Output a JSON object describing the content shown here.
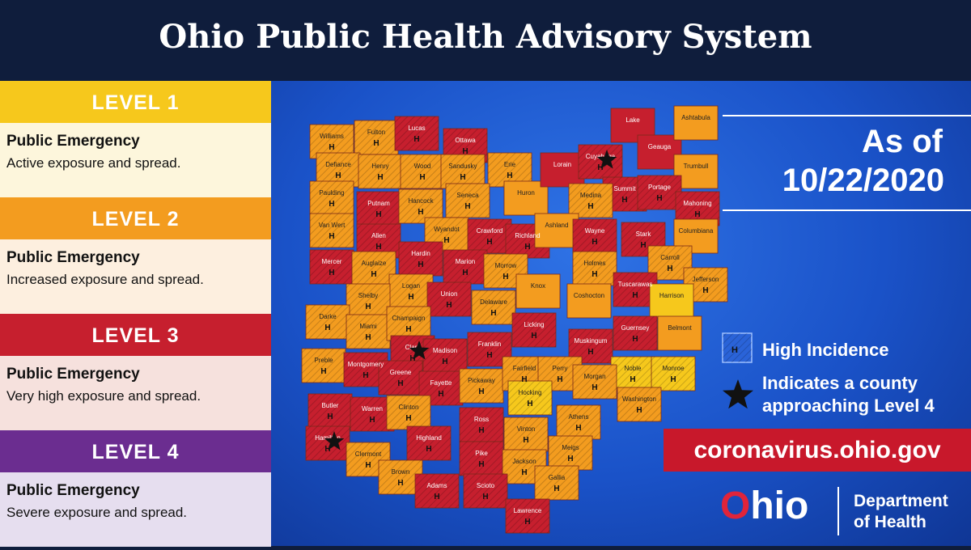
{
  "header": {
    "title": "Ohio Public Health Advisory System"
  },
  "levels": [
    {
      "label": "LEVEL 1",
      "color": "#f6c81c",
      "status": "Public Emergency",
      "description": "Active exposure and spread."
    },
    {
      "label": "LEVEL 2",
      "color": "#f39c1f",
      "status": "Public Emergency",
      "description": "Increased exposure and spread."
    },
    {
      "label": "LEVEL 3",
      "color": "#c61f2e",
      "status": "Public Emergency",
      "description": "Very high exposure and spread."
    },
    {
      "label": "LEVEL 4",
      "color": "#6b2d90",
      "status": "Public Emergency",
      "description": "Severe exposure and spread."
    }
  ],
  "date": {
    "prefix": "As of",
    "value": "10/22/2020"
  },
  "legend": {
    "high_incidence_marker": "H",
    "high_incidence": "High Incidence",
    "approaching": "Indicates a county approaching Level 4"
  },
  "website": "coronavirus.ohio.gov",
  "logo": {
    "name": "Ohio",
    "department": "Department of Health"
  },
  "counties": [
    {
      "name": "Williams",
      "level": 2,
      "high": true
    },
    {
      "name": "Fulton",
      "level": 2,
      "high": true
    },
    {
      "name": "Lucas",
      "level": 3,
      "high": true
    },
    {
      "name": "Ottawa",
      "level": 3,
      "high": true
    },
    {
      "name": "Defiance",
      "level": 2,
      "high": true
    },
    {
      "name": "Henry",
      "level": 2,
      "high": true
    },
    {
      "name": "Wood",
      "level": 2,
      "high": true
    },
    {
      "name": "Sandusky",
      "level": 2,
      "high": true
    },
    {
      "name": "Erie",
      "level": 2,
      "high": true
    },
    {
      "name": "Huron",
      "level": 2,
      "high": false
    },
    {
      "name": "Lorain",
      "level": 3,
      "high": false
    },
    {
      "name": "Cuyahoga",
      "level": 3,
      "high": true,
      "star": true
    },
    {
      "name": "Lake",
      "level": 3,
      "high": false
    },
    {
      "name": "Geauga",
      "level": 3,
      "high": false
    },
    {
      "name": "Ashtabula",
      "level": 2,
      "high": false
    },
    {
      "name": "Trumbull",
      "level": 2,
      "high": false
    },
    {
      "name": "Summit",
      "level": 3,
      "high": true
    },
    {
      "name": "Portage",
      "level": 3,
      "high": true
    },
    {
      "name": "Mahoning",
      "level": 3,
      "high": true
    },
    {
      "name": "Medina",
      "level": 2,
      "high": true
    },
    {
      "name": "Paulding",
      "level": 2,
      "high": true
    },
    {
      "name": "Putnam",
      "level": 3,
      "high": true
    },
    {
      "name": "Hancock",
      "level": 2,
      "high": true
    },
    {
      "name": "Seneca",
      "level": 2,
      "high": true
    },
    {
      "name": "Van Wert",
      "level": 2,
      "high": true
    },
    {
      "name": "Allen",
      "level": 3,
      "high": true
    },
    {
      "name": "Wyandot",
      "level": 2,
      "high": true
    },
    {
      "name": "Crawford",
      "level": 3,
      "high": true
    },
    {
      "name": "Richland",
      "level": 3,
      "high": true
    },
    {
      "name": "Ashland",
      "level": 2,
      "high": false
    },
    {
      "name": "Wayne",
      "level": 3,
      "high": true
    },
    {
      "name": "Stark",
      "level": 3,
      "high": true
    },
    {
      "name": "Columbiana",
      "level": 2,
      "high": false
    },
    {
      "name": "Mercer",
      "level": 3,
      "high": true
    },
    {
      "name": "Auglaize",
      "level": 2,
      "high": true
    },
    {
      "name": "Hardin",
      "level": 3,
      "high": true
    },
    {
      "name": "Marion",
      "level": 3,
      "high": true
    },
    {
      "name": "Morrow",
      "level": 2,
      "high": true
    },
    {
      "name": "Holmes",
      "level": 2,
      "high": true
    },
    {
      "name": "Carroll",
      "level": 2,
      "high": true
    },
    {
      "name": "Jefferson",
      "level": 2,
      "high": true
    },
    {
      "name": "Logan",
      "level": 2,
      "high": true
    },
    {
      "name": "Union",
      "level": 3,
      "high": true
    },
    {
      "name": "Delaware",
      "level": 2,
      "high": true
    },
    {
      "name": "Knox",
      "level": 2,
      "high": false
    },
    {
      "name": "Coshocton",
      "level": 2,
      "high": false
    },
    {
      "name": "Tuscarawas",
      "level": 3,
      "high": true
    },
    {
      "name": "Harrison",
      "level": 1,
      "high": false
    },
    {
      "name": "Shelby",
      "level": 2,
      "high": true
    },
    {
      "name": "Darke",
      "level": 2,
      "high": true
    },
    {
      "name": "Miami",
      "level": 2,
      "high": true
    },
    {
      "name": "Champaign",
      "level": 2,
      "high": true
    },
    {
      "name": "Licking",
      "level": 3,
      "high": true
    },
    {
      "name": "Guernsey",
      "level": 3,
      "high": true
    },
    {
      "name": "Belmont",
      "level": 2,
      "high": false
    },
    {
      "name": "Clark",
      "level": 3,
      "high": true,
      "star": true
    },
    {
      "name": "Madison",
      "level": 3,
      "high": true
    },
    {
      "name": "Franklin",
      "level": 3,
      "high": true
    },
    {
      "name": "Muskingum",
      "level": 3,
      "high": true
    },
    {
      "name": "Preble",
      "level": 2,
      "high": true
    },
    {
      "name": "Montgomery",
      "level": 3,
      "high": true
    },
    {
      "name": "Greene",
      "level": 3,
      "high": true
    },
    {
      "name": "Fayette",
      "level": 3,
      "high": true
    },
    {
      "name": "Pickaway",
      "level": 2,
      "high": true
    },
    {
      "name": "Fairfield",
      "level": 2,
      "high": true
    },
    {
      "name": "Perry",
      "level": 2,
      "high": true
    },
    {
      "name": "Noble",
      "level": 1,
      "high": true
    },
    {
      "name": "Monroe",
      "level": 1,
      "high": true
    },
    {
      "name": "Morgan",
      "level": 2,
      "high": true
    },
    {
      "name": "Washington",
      "level": 2,
      "high": true
    },
    {
      "name": "Butler",
      "level": 3,
      "high": true
    },
    {
      "name": "Warren",
      "level": 3,
      "high": true
    },
    {
      "name": "Clinton",
      "level": 2,
      "high": true
    },
    {
      "name": "Ross",
      "level": 3,
      "high": true
    },
    {
      "name": "Hocking",
      "level": 1,
      "high": true
    },
    {
      "name": "Athens",
      "level": 2,
      "high": true
    },
    {
      "name": "Hamilton",
      "level": 3,
      "high": true,
      "star": true
    },
    {
      "name": "Clermont",
      "level": 2,
      "high": true
    },
    {
      "name": "Highland",
      "level": 3,
      "high": true
    },
    {
      "name": "Vinton",
      "level": 2,
      "high": true
    },
    {
      "name": "Meigs",
      "level": 2,
      "high": true
    },
    {
      "name": "Brown",
      "level": 2,
      "high": true
    },
    {
      "name": "Adams",
      "level": 3,
      "high": true
    },
    {
      "name": "Pike",
      "level": 3,
      "high": true
    },
    {
      "name": "Jackson",
      "level": 2,
      "high": true
    },
    {
      "name": "Gallia",
      "level": 2,
      "high": true
    },
    {
      "name": "Scioto",
      "level": 3,
      "high": true
    },
    {
      "name": "Lawrence",
      "level": 3,
      "high": true
    }
  ]
}
